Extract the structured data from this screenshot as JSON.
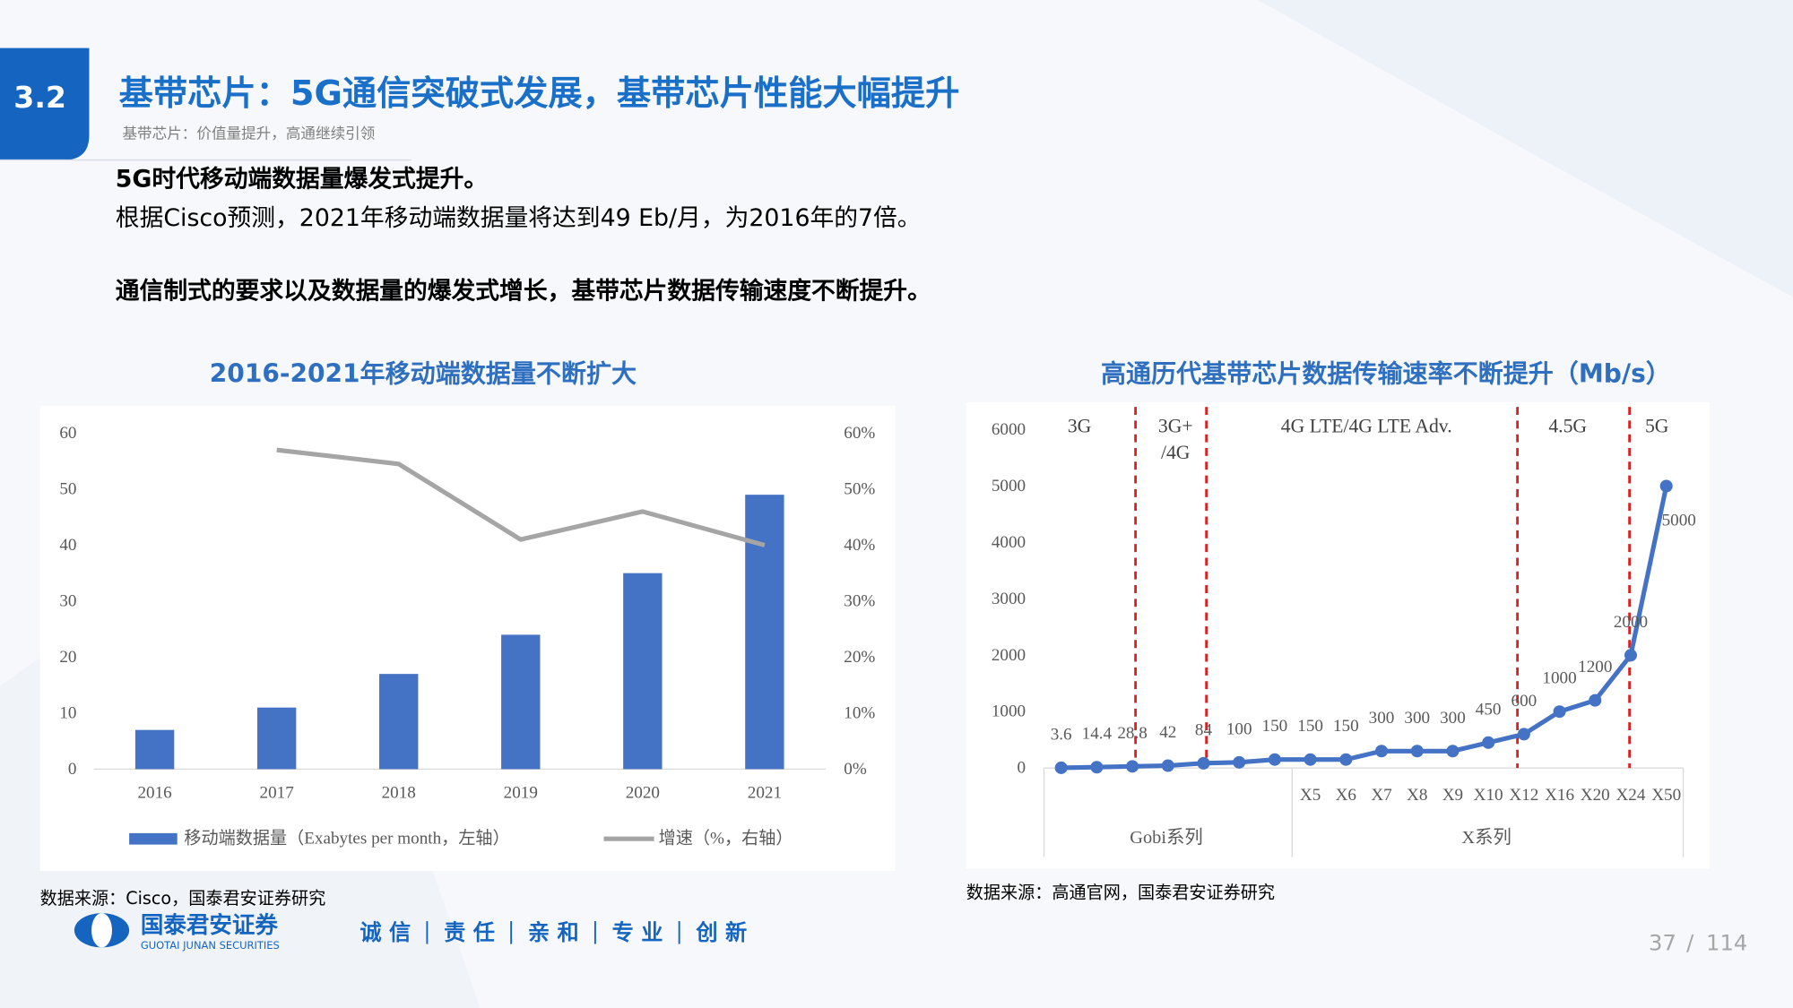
{
  "header": {
    "section": "3.2",
    "title": "基带芯片：5G通信突破式发展，基带芯片性能大幅提升",
    "subtitle": "基带芯片：价值量提升，高通继续引领"
  },
  "body": {
    "lines": [
      "5G时代移动端数据量爆发式提升。",
      "根据Cisco预测，2021年移动端数据量将达到49 Eb/月，为2016年的7倍。",
      "通信制式的要求以及数据量的爆发式增长，基带芯片数据传输速度不断提升。"
    ]
  },
  "chart_data": [
    {
      "type": "bar",
      "title": "2016-2021年移动端数据量不断扩大",
      "categories": [
        "2016",
        "2017",
        "2018",
        "2019",
        "2020",
        "2021"
      ],
      "series": [
        {
          "name": "移动端数据量（Exabytes per month，左轴）",
          "type": "bar",
          "color": "#4472c4",
          "values": [
            7,
            11,
            17,
            24,
            35,
            49
          ]
        },
        {
          "name": "增速（%，右轴）",
          "type": "line",
          "axis": "y2",
          "color": "#a5a5a5",
          "values": [
            null,
            57,
            54.5,
            41,
            46,
            40
          ]
        }
      ],
      "ylim": [
        0,
        60
      ],
      "yticks": [
        0,
        10,
        20,
        30,
        40,
        50,
        60
      ],
      "y2lim": [
        0,
        60
      ],
      "y2ticks": [
        {
          "value": 0,
          "label": "0%"
        },
        {
          "value": 10,
          "label": "10%"
        },
        {
          "value": 20,
          "label": "20%"
        },
        {
          "value": 30,
          "label": "30%"
        },
        {
          "value": 40,
          "label": "40%"
        },
        {
          "value": 50,
          "label": "50%"
        },
        {
          "value": 60,
          "label": "60%"
        }
      ],
      "legend": "bottom",
      "source": "数据来源：Cisco，国泰君安证券研究"
    },
    {
      "type": "line",
      "title": "高通历代基带芯片数据传输速率不断提升（Mb/s）",
      "categories": [
        null,
        null,
        null,
        null,
        null,
        null,
        null,
        "X5",
        "X6",
        "X7",
        "X8",
        "X9",
        "X10",
        "X12",
        "X16",
        "X20",
        "X24",
        "X50"
      ],
      "groups": [
        "Gobi系列",
        "X系列"
      ],
      "series": [
        {
          "color": "#4472c4",
          "values": [
            3.6,
            14.4,
            28.8,
            42,
            84,
            100,
            150,
            150,
            150,
            300,
            300,
            300,
            450,
            600,
            1000,
            1200,
            2000,
            5000
          ]
        }
      ],
      "ylim": [
        0,
        6000
      ],
      "yticks": [
        0,
        1000,
        2000,
        3000,
        4000,
        5000,
        6000
      ],
      "era_labels": [
        [
          "3G"
        ],
        [
          "3G+",
          "/4G"
        ],
        [
          "4G LTE/4G LTE Adv."
        ],
        [
          "4.5G"
        ],
        [
          "5G"
        ]
      ],
      "divider_color": "#e02020",
      "source": "数据来源：高通官网，国泰君安证券研究"
    }
  ],
  "footer": {
    "brand": "国泰君安证券",
    "brand_en": "GUOTAI JUNAN SECURITIES",
    "slogan": [
      "诚 信",
      "责 任",
      "亲 和",
      "专 业",
      "创 新"
    ],
    "page": "37",
    "separator": "/",
    "total": "114"
  }
}
